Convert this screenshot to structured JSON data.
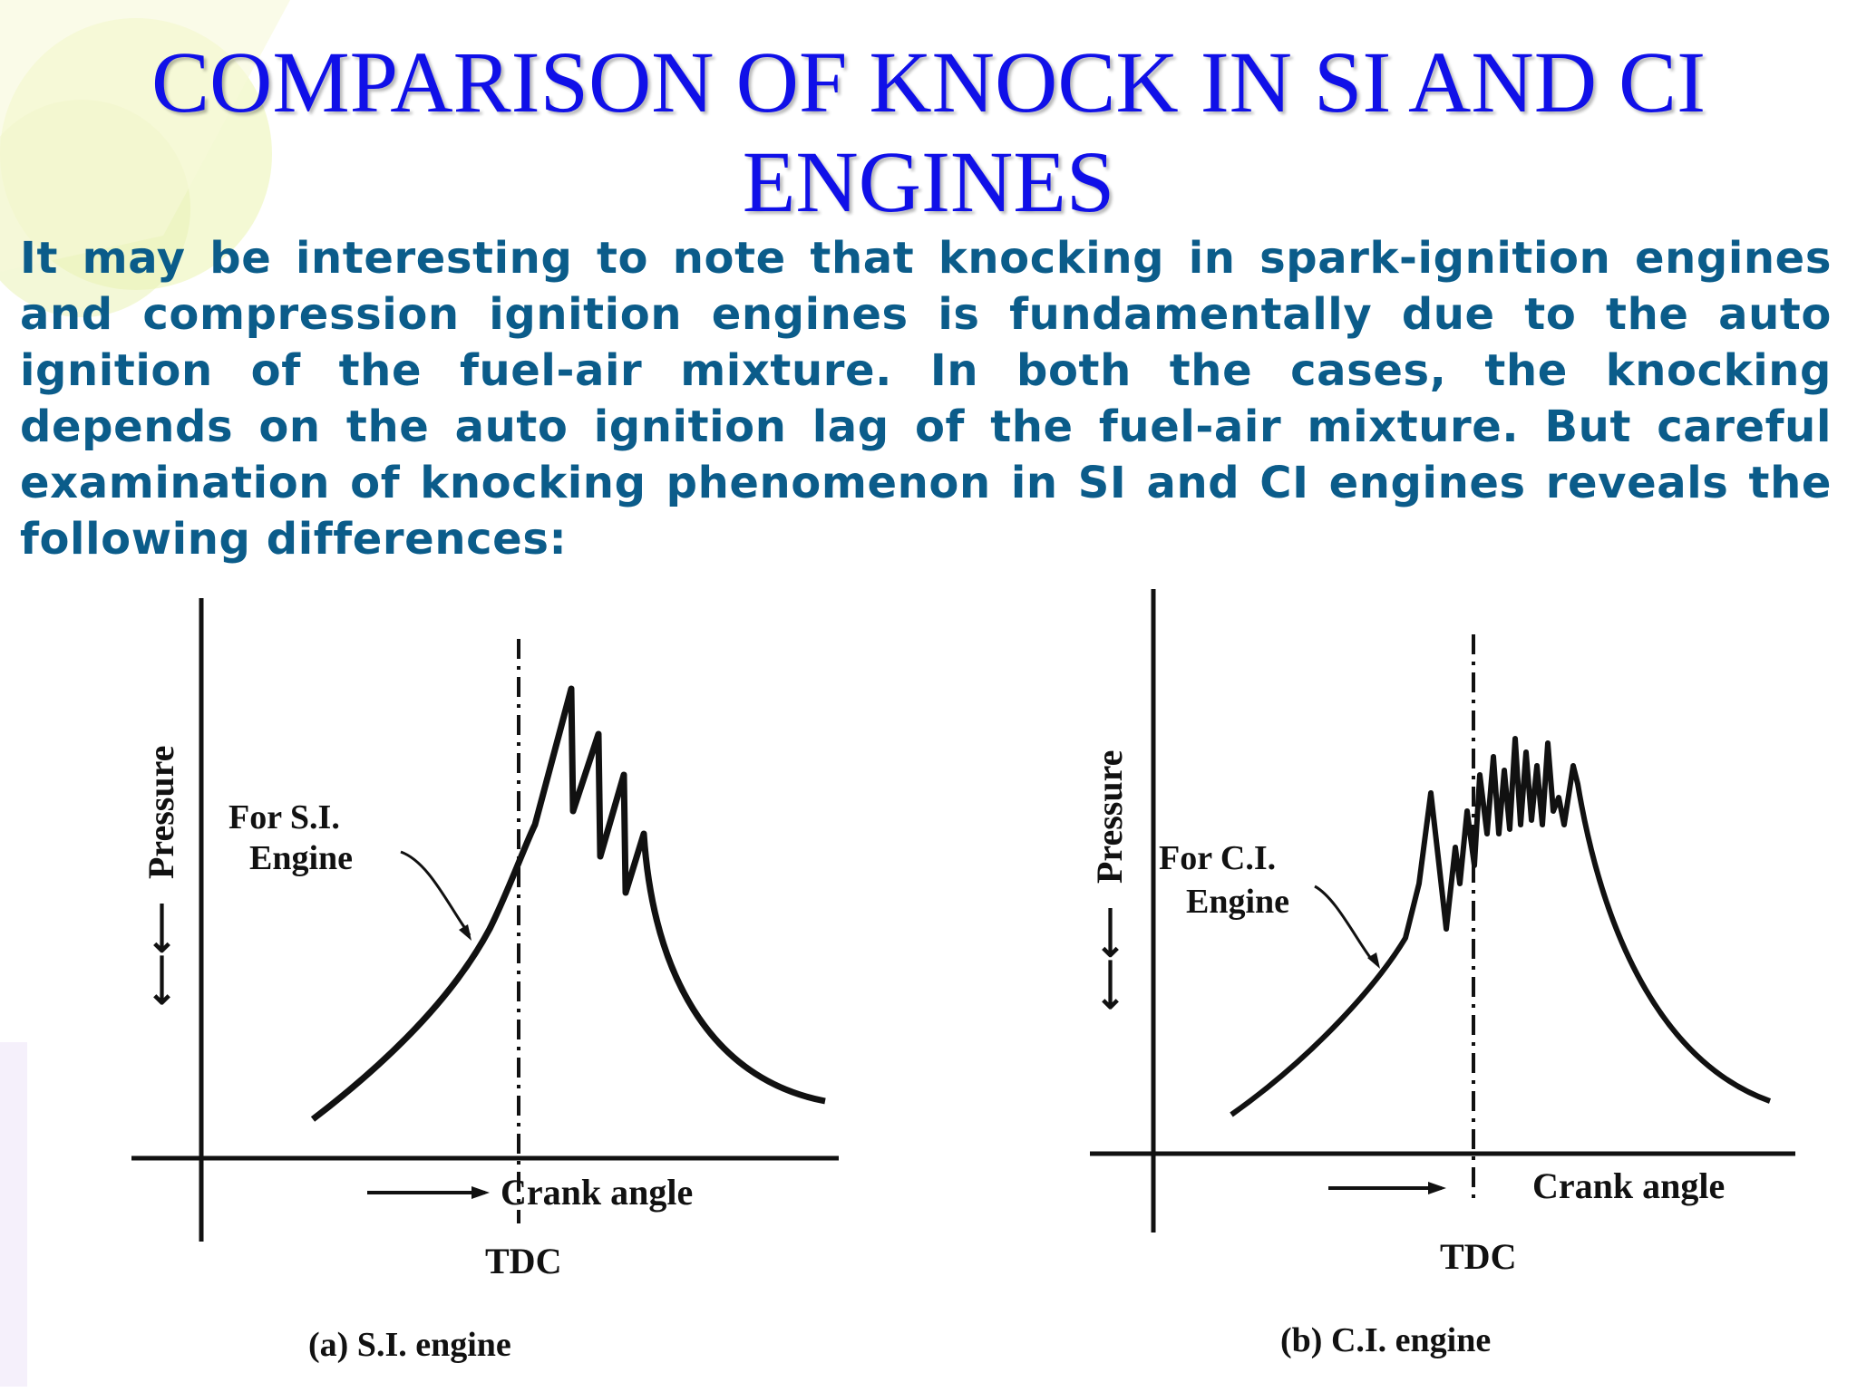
{
  "slide": {
    "title_line1": "COMPARISON OF KNOCK IN SI AND CI",
    "title_line2": "ENGINES",
    "body": "It may be interesting to note that knocking in spark-ignition engines and compression ignition engines is fundamentally due to the auto ignition of the fuel-air mixture. In both the cases, the knocking depends on the auto ignition lag of the fuel-air mixture. But careful examination of knocking phenomenon in SI and CI engines reveals the following differences:",
    "title_color": "#1010e8",
    "body_color": "#0b5c8a"
  },
  "figures": [
    {
      "y_axis_label": "Pressure",
      "x_axis_label": "Crank angle",
      "tdc_label": "TDC",
      "curve_label_line1": "For S.I.",
      "curve_label_line2": "Engine",
      "caption": "(a) S.I. engine"
    },
    {
      "y_axis_label": "Pressure",
      "x_axis_label": "Crank angle",
      "tdc_label": "TDC",
      "curve_label_line1": "For C.I.",
      "curve_label_line2": "Engine",
      "caption": "(b) C.I. engine"
    }
  ]
}
